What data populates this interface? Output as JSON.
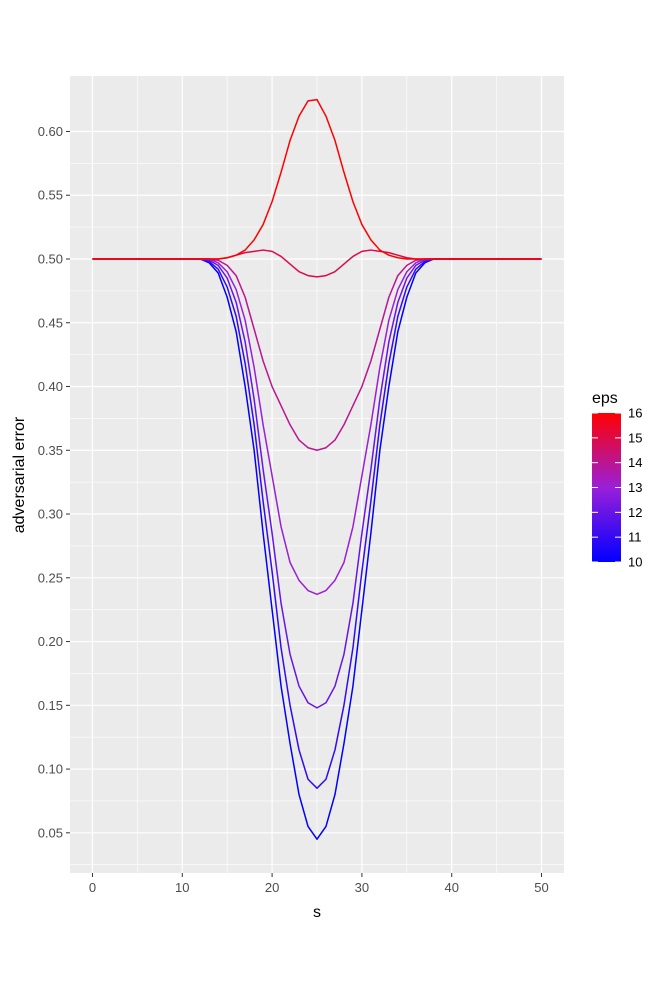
{
  "chart_data": {
    "type": "line",
    "xlabel": "s",
    "ylabel": "adversarial error",
    "xlim": [
      -2.5,
      52.5
    ],
    "ylim": [
      0.0185,
      0.6435
    ],
    "x_ticks": [
      0,
      10,
      20,
      30,
      40,
      50
    ],
    "x_tick_labels": [
      "0",
      "10",
      "20",
      "30",
      "40",
      "50"
    ],
    "y_ticks": [
      0.05,
      0.1,
      0.15,
      0.2,
      0.25,
      0.3,
      0.35,
      0.4,
      0.45,
      0.5,
      0.55,
      0.6
    ],
    "y_tick_labels": [
      "0.05",
      "0.10",
      "0.15",
      "0.20",
      "0.25",
      "0.30",
      "0.35",
      "0.40",
      "0.45",
      "0.50",
      "0.55",
      "0.60"
    ],
    "grid": true,
    "legend": {
      "title": "eps",
      "position": "right",
      "type": "colorbar",
      "range": [
        10,
        16
      ],
      "breaks": [
        10,
        11,
        12,
        13,
        14,
        15,
        16
      ],
      "low_color": "#0000ff",
      "high_color": "#ff0000"
    },
    "x": [
      0,
      1,
      2,
      3,
      4,
      5,
      6,
      7,
      8,
      9,
      10,
      11,
      12,
      13,
      14,
      15,
      16,
      17,
      18,
      19,
      20,
      21,
      22,
      23,
      24,
      25,
      26,
      27,
      28,
      29,
      30,
      31,
      32,
      33,
      34,
      35,
      36,
      37,
      38,
      39,
      40,
      41,
      42,
      43,
      44,
      45,
      46,
      47,
      48,
      49,
      50
    ],
    "series": [
      {
        "eps": 10,
        "values": [
          0.5,
          0.5,
          0.5,
          0.5,
          0.5,
          0.5,
          0.5,
          0.5,
          0.5,
          0.5,
          0.5,
          0.5,
          0.5,
          0.497,
          0.489,
          0.47,
          0.443,
          0.4,
          0.35,
          0.285,
          0.225,
          0.165,
          0.12,
          0.08,
          0.055,
          0.045,
          0.055,
          0.08,
          0.12,
          0.165,
          0.225,
          0.285,
          0.35,
          0.4,
          0.443,
          0.47,
          0.489,
          0.497,
          0.5,
          0.5,
          0.5,
          0.5,
          0.5,
          0.5,
          0.5,
          0.5,
          0.5,
          0.5,
          0.5,
          0.5,
          0.5
        ]
      },
      {
        "eps": 11,
        "values": [
          0.5,
          0.5,
          0.5,
          0.5,
          0.5,
          0.5,
          0.5,
          0.5,
          0.5,
          0.5,
          0.5,
          0.5,
          0.5,
          0.498,
          0.492,
          0.478,
          0.455,
          0.418,
          0.37,
          0.31,
          0.255,
          0.195,
          0.15,
          0.115,
          0.092,
          0.085,
          0.092,
          0.115,
          0.15,
          0.195,
          0.255,
          0.31,
          0.37,
          0.418,
          0.455,
          0.478,
          0.492,
          0.498,
          0.5,
          0.5,
          0.5,
          0.5,
          0.5,
          0.5,
          0.5,
          0.5,
          0.5,
          0.5,
          0.5,
          0.5,
          0.5
        ]
      },
      {
        "eps": 12,
        "values": [
          0.5,
          0.5,
          0.5,
          0.5,
          0.5,
          0.5,
          0.5,
          0.5,
          0.5,
          0.5,
          0.5,
          0.5,
          0.5,
          0.499,
          0.495,
          0.485,
          0.466,
          0.435,
          0.39,
          0.335,
          0.285,
          0.23,
          0.19,
          0.165,
          0.152,
          0.148,
          0.152,
          0.165,
          0.19,
          0.23,
          0.285,
          0.335,
          0.39,
          0.435,
          0.466,
          0.485,
          0.495,
          0.499,
          0.5,
          0.5,
          0.5,
          0.5,
          0.5,
          0.5,
          0.5,
          0.5,
          0.5,
          0.5,
          0.5,
          0.5,
          0.5
        ]
      },
      {
        "eps": 13,
        "values": [
          0.5,
          0.5,
          0.5,
          0.5,
          0.5,
          0.5,
          0.5,
          0.5,
          0.5,
          0.5,
          0.5,
          0.5,
          0.5,
          0.5,
          0.497,
          0.49,
          0.476,
          0.452,
          0.415,
          0.37,
          0.33,
          0.29,
          0.262,
          0.248,
          0.24,
          0.237,
          0.24,
          0.248,
          0.262,
          0.29,
          0.33,
          0.37,
          0.415,
          0.452,
          0.476,
          0.49,
          0.497,
          0.5,
          0.5,
          0.5,
          0.5,
          0.5,
          0.5,
          0.5,
          0.5,
          0.5,
          0.5,
          0.5,
          0.5,
          0.5,
          0.5
        ]
      },
      {
        "eps": 14,
        "values": [
          0.5,
          0.5,
          0.5,
          0.5,
          0.5,
          0.5,
          0.5,
          0.5,
          0.5,
          0.5,
          0.5,
          0.5,
          0.5,
          0.5,
          0.499,
          0.495,
          0.487,
          0.47,
          0.445,
          0.42,
          0.4,
          0.385,
          0.37,
          0.358,
          0.352,
          0.35,
          0.352,
          0.358,
          0.37,
          0.385,
          0.4,
          0.42,
          0.445,
          0.47,
          0.487,
          0.495,
          0.499,
          0.5,
          0.5,
          0.5,
          0.5,
          0.5,
          0.5,
          0.5,
          0.5,
          0.5,
          0.5,
          0.5,
          0.5,
          0.5,
          0.5
        ]
      },
      {
        "eps": 15,
        "values": [
          0.5,
          0.5,
          0.5,
          0.5,
          0.5,
          0.5,
          0.5,
          0.5,
          0.5,
          0.5,
          0.5,
          0.5,
          0.5,
          0.5,
          0.5,
          0.501,
          0.503,
          0.505,
          0.506,
          0.507,
          0.506,
          0.502,
          0.496,
          0.49,
          0.487,
          0.486,
          0.487,
          0.49,
          0.496,
          0.502,
          0.506,
          0.507,
          0.506,
          0.505,
          0.503,
          0.501,
          0.5,
          0.5,
          0.5,
          0.5,
          0.5,
          0.5,
          0.5,
          0.5,
          0.5,
          0.5,
          0.5,
          0.5,
          0.5,
          0.5,
          0.5
        ]
      },
      {
        "eps": 16,
        "values": [
          0.5,
          0.5,
          0.5,
          0.5,
          0.5,
          0.5,
          0.5,
          0.5,
          0.5,
          0.5,
          0.5,
          0.5,
          0.5,
          0.5,
          0.5,
          0.501,
          0.503,
          0.507,
          0.515,
          0.527,
          0.545,
          0.568,
          0.593,
          0.612,
          0.624,
          0.625,
          0.612,
          0.593,
          0.568,
          0.545,
          0.527,
          0.515,
          0.507,
          0.503,
          0.501,
          0.5,
          0.5,
          0.5,
          0.5,
          0.5,
          0.5,
          0.5,
          0.5,
          0.5,
          0.5,
          0.5,
          0.5,
          0.5,
          0.5,
          0.5,
          0.5
        ]
      }
    ]
  }
}
